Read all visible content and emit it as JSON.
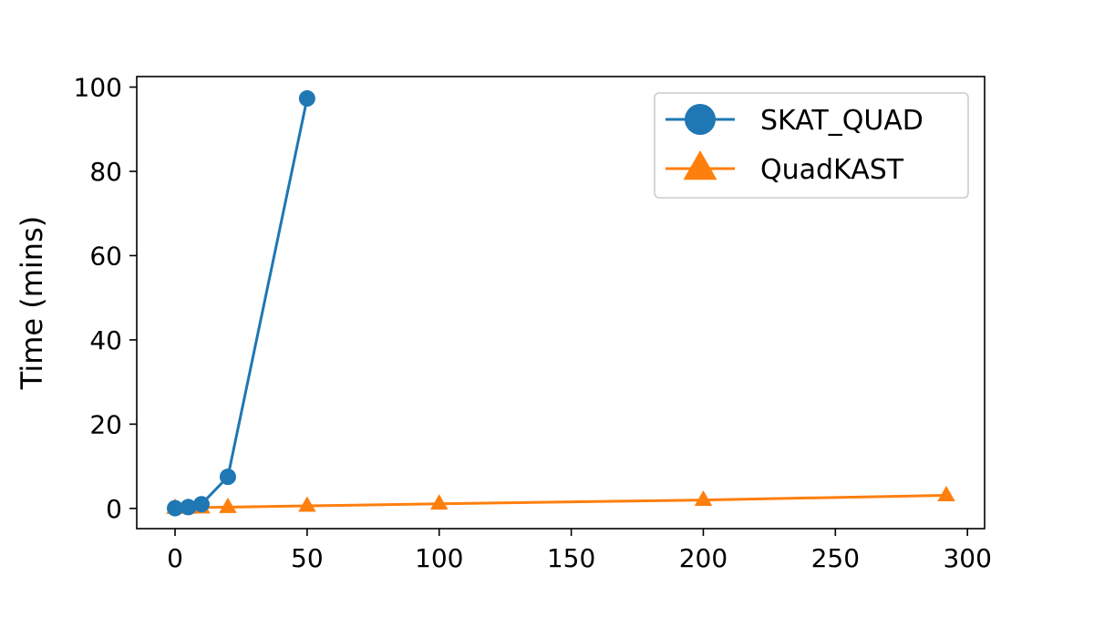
{
  "chart_data": {
    "type": "line",
    "title": "",
    "xlabel": "",
    "ylabel": "Time (mins)",
    "xlim": [
      -14.5,
      306.5
    ],
    "ylim": [
      -4.8,
      102.5
    ],
    "xticks": [
      0,
      50,
      100,
      150,
      200,
      250,
      300
    ],
    "yticks": [
      0,
      20,
      40,
      60,
      80,
      100
    ],
    "grid": false,
    "legend_position": "top-right",
    "series": [
      {
        "name": "SKAT_QUAD",
        "color": "#1f77b4",
        "marker": "circle",
        "x": [
          0,
          5,
          10,
          20,
          50
        ],
        "y": [
          0.05,
          0.3,
          1.0,
          7.5,
          97.3
        ]
      },
      {
        "name": "QuadKAST",
        "color": "#ff7f0e",
        "marker": "triangle",
        "x": [
          0,
          5,
          10,
          20,
          50,
          100,
          200,
          292
        ],
        "y": [
          0.1,
          0.15,
          0.2,
          0.3,
          0.6,
          1.1,
          2.0,
          3.1
        ]
      }
    ]
  }
}
